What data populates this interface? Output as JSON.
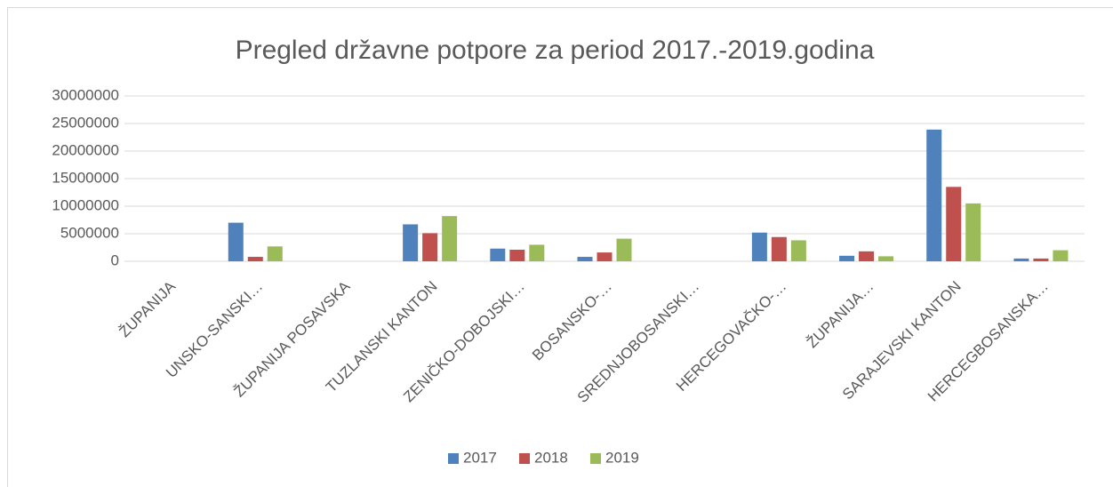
{
  "chart_data": {
    "type": "bar",
    "title": "Pregled državne potpore za period 2017.-2019.godina",
    "categories": [
      "ŽUPANIJA",
      "UNSKO-SANSKI…",
      "ŽUPANIJA POSAVSKA",
      "TUZLANSKI KANTON",
      "ZENIČKO-DOBOJSKI…",
      "BOSANSKO-…",
      "SREDNJOBOSANSKI…",
      "HERCEGOVAČKO-…",
      "ŽUPANIJA…",
      "SARAJEVSKI KANTON",
      "HERCEGBOSANSKA…"
    ],
    "series": [
      {
        "name": "2017",
        "color": "#4f81bd",
        "values": [
          0,
          7000000,
          0,
          6700000,
          2300000,
          800000,
          0,
          5200000,
          1000000,
          23900000,
          500000
        ]
      },
      {
        "name": "2018",
        "color": "#c0504d",
        "values": [
          0,
          800000,
          0,
          5100000,
          2100000,
          1600000,
          0,
          4400000,
          1800000,
          13500000,
          500000
        ]
      },
      {
        "name": "2019",
        "color": "#9bbb59",
        "values": [
          0,
          2700000,
          0,
          8200000,
          3000000,
          4100000,
          0,
          3800000,
          900000,
          10500000,
          2000000
        ]
      }
    ],
    "ylim": [
      0,
      30000000
    ],
    "yticks": [
      0,
      5000000,
      10000000,
      15000000,
      20000000,
      25000000,
      30000000
    ],
    "grid": true,
    "legend": "bottom"
  }
}
